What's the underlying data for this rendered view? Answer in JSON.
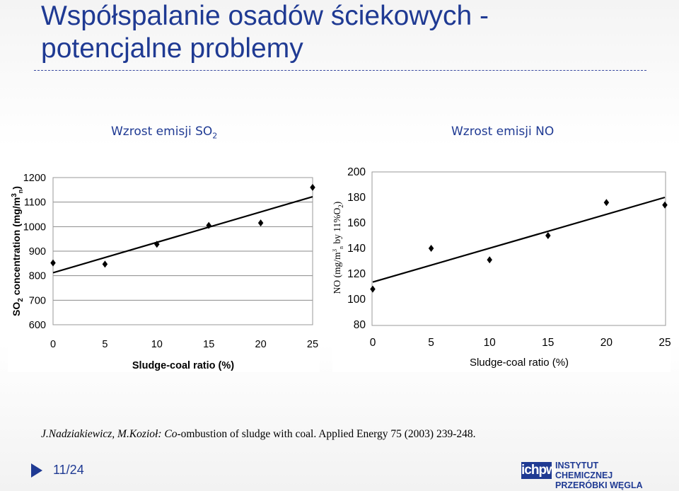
{
  "slide": {
    "title_line1": "Współspalanie osadów ściekowych -",
    "title_line2": "potencjalne problemy",
    "subtitle_left_prefix": "Wzrost emisji SO",
    "subtitle_left_sub": "2",
    "subtitle_right": "Wzrost emisji NO",
    "citation_authors": "J.Nadziakiewicz, M.Kozioł: ",
    "citation_co": "Co",
    "citation_rest": "-ombustion of sludge with coal. Applied Energy 75 (2003) 239-248.",
    "page": "11/24",
    "logo_mark": "ichpw",
    "logo_line1": "INSTYTUT CHEMICZNEJ",
    "logo_line2": "PRZERÓBKI WĘGLA"
  },
  "colors": {
    "title": "#1f3a93",
    "marker": "#000000"
  },
  "chart_data": [
    {
      "type": "scatter",
      "xlabel": "Sludge-coal ratio (%)",
      "ylabel_prefix": "SO",
      "ylabel_sub": "2",
      "ylabel_rest": " concentration (mg/m",
      "ylabel_sup": "3",
      "ylabel_sub2": "n",
      "ylabel_end": ")",
      "xlim": [
        0,
        25
      ],
      "ylim": [
        600,
        1200
      ],
      "xticks": [
        "0",
        "5",
        "10",
        "15",
        "20",
        "25"
      ],
      "yticks": [
        "600",
        "700",
        "800",
        "900",
        "1000",
        "1100",
        "1200"
      ],
      "x": [
        0,
        5,
        10,
        15,
        20,
        25
      ],
      "y": [
        852,
        847,
        928,
        1005,
        1015,
        1160
      ],
      "trendline": {
        "x": [
          0,
          25
        ],
        "y": [
          812,
          1122
        ]
      },
      "grid": "horizontal"
    },
    {
      "type": "scatter",
      "xlabel": "Sludge-coal ratio (%)",
      "ylabel_main": "NO (mg/m",
      "ylabel_sup": "3",
      "ylabel_sub": "n",
      "ylabel_mid": " by 11%O",
      "ylabel_sub2": "2",
      "ylabel_end": ")",
      "xlim": [
        0,
        25
      ],
      "ylim": [
        80,
        200
      ],
      "xticks": [
        "0",
        "5",
        "10",
        "15",
        "20",
        "25"
      ],
      "yticks": [
        "80",
        "100",
        "120",
        "140",
        "160",
        "180",
        "200"
      ],
      "x": [
        0,
        5,
        10,
        15,
        20,
        25
      ],
      "y": [
        108,
        140,
        131,
        150,
        176,
        174
      ],
      "trendline": {
        "x": [
          0,
          25
        ],
        "y": [
          113.5,
          180
        ]
      },
      "grid": "none"
    }
  ]
}
